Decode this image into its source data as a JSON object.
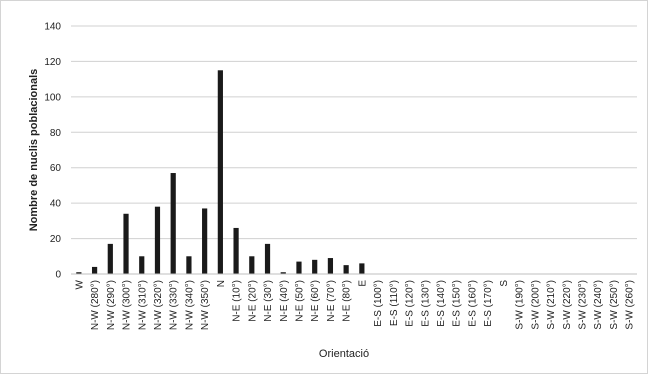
{
  "chart_data": {
    "type": "bar",
    "title": "",
    "xlabel": "Orientació",
    "ylabel": "Nombre de nuclis poblacionals",
    "ylim": [
      0,
      140
    ],
    "yticks": [
      0,
      20,
      40,
      60,
      80,
      100,
      120,
      140
    ],
    "grid": true,
    "bar_color": "#1a1a1a",
    "categories": [
      "W",
      "N-W (280°)",
      "N-W (290°)",
      "N-W (300°)",
      "N-W (310°)",
      "N-W (320°)",
      "N-W (330°)",
      "N-W (340°)",
      "N-W (350°)",
      "N",
      "N-E (10°)",
      "N-E (20°)",
      "N-E (30°)",
      "N-E (40°)",
      "N-E (50°)",
      "N-E (60°)",
      "N-E (70°)",
      "N-E (80°)",
      "E",
      "E-S (100°)",
      "E-S (110°)",
      "E-S (120°)",
      "E-S (130°)",
      "E-S (140°)",
      "E-S (150°)",
      "E-S (160°)",
      "E-S (170°)",
      "S",
      "S-W (190°)",
      "S-W (200°)",
      "S-W (210°)",
      "S-W (220°)",
      "S-W (230°)",
      "S-W (240°)",
      "S-W (250°)",
      "S-W (260°)"
    ],
    "values": [
      1,
      4,
      17,
      34,
      10,
      38,
      57,
      10,
      37,
      115,
      26,
      10,
      17,
      1,
      7,
      8,
      9,
      5,
      6,
      0,
      0,
      0,
      0,
      0,
      0,
      0,
      0,
      0,
      0,
      0,
      0,
      0,
      0,
      0,
      0,
      0
    ]
  }
}
